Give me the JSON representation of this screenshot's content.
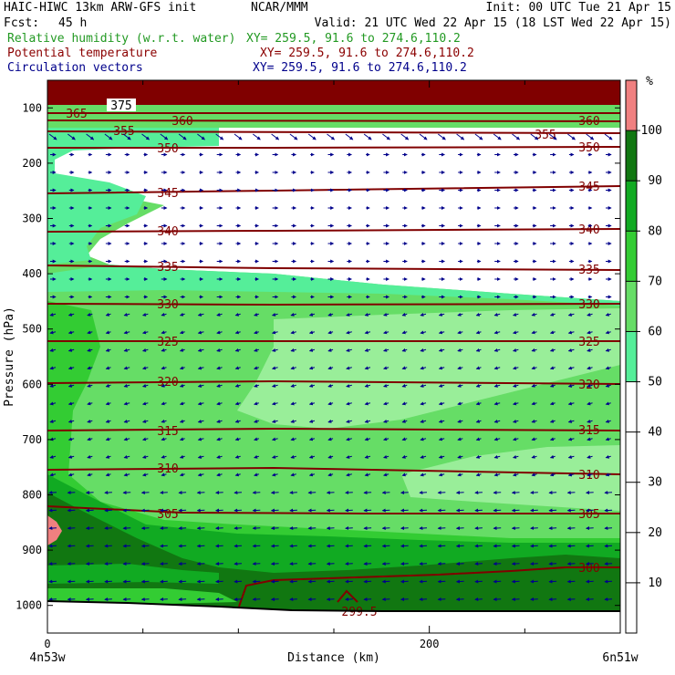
{
  "header": {
    "model_line": "HAIC-HIWC 13km ARW-GFS init",
    "org": "NCAR/MMM",
    "init": "Init: 00 UTC Tue 21 Apr 15",
    "fcst_label": "Fcst:",
    "fcst_value": "45 h",
    "valid": "Valid: 21 UTC Wed 22 Apr 15 (18 LST Wed 22 Apr 15)",
    "fields": [
      {
        "name": "Relative humidity (w.r.t. water)",
        "xy": "XY= 259.5, 91.6 to 274.6,110.2",
        "color": "#229922"
      },
      {
        "name": "Potential temperature",
        "xy": "XY= 259.5, 91.6 to 274.6,110.2",
        "color": "#8b0000"
      },
      {
        "name": "Circulation vectors",
        "xy": "XY= 259.5, 91.6 to 274.6,110.2",
        "color": "#00008b"
      }
    ]
  },
  "chart_data": {
    "type": "heatmap",
    "xlabel": "Distance (km)",
    "ylabel": "Pressure (hPa)",
    "x_ticks": [
      "0",
      "200"
    ],
    "x_tick_values": [
      0,
      200
    ],
    "x_minor_ticks": [
      50,
      100,
      150,
      250
    ],
    "xlim": [
      0,
      300
    ],
    "x_end_labels": {
      "left": "4n53w",
      "right": "6n51w"
    },
    "y_ticks": [
      "100",
      "200",
      "300",
      "400",
      "500",
      "600",
      "700",
      "800",
      "900",
      "1000"
    ],
    "y_tick_values": [
      100,
      200,
      300,
      400,
      500,
      600,
      700,
      800,
      900,
      1000
    ],
    "ylim": [
      50,
      1050
    ],
    "colorbar": {
      "unit": "%",
      "levels": [
        "10",
        "20",
        "30",
        "40",
        "50",
        "60",
        "70",
        "80",
        "90",
        "100"
      ],
      "level_values": [
        10,
        20,
        30,
        40,
        50,
        60,
        70,
        80,
        90,
        100
      ],
      "band_colors": [
        "#ffffff",
        "#ffffff",
        "#ffffff",
        "#ffffff",
        "#ffffff",
        "#55ee99",
        "#66dd66",
        "#33cc33",
        "#11aa22",
        "#117711",
        "#f08080"
      ]
    },
    "theta_contours": [
      {
        "label": "375",
        "p": 100
      },
      {
        "label": "365",
        "p": 110
      },
      {
        "label": "360",
        "p": 125
      },
      {
        "label": "355",
        "p": 142
      },
      {
        "label": "350",
        "p": 170
      },
      {
        "label": "345",
        "p": 243
      },
      {
        "label": "340",
        "p": 325
      },
      {
        "label": "335",
        "p": 390
      },
      {
        "label": "330",
        "p": 455
      },
      {
        "label": "325",
        "p": 520
      },
      {
        "label": "320",
        "p": 600
      },
      {
        "label": "315",
        "p": 683
      },
      {
        "label": "310",
        "p": 752
      },
      {
        "label": "305",
        "p": 828
      },
      {
        "label": "300",
        "p": 930
      },
      {
        "label": "299.5",
        "p": 1000
      }
    ],
    "grid": false
  }
}
